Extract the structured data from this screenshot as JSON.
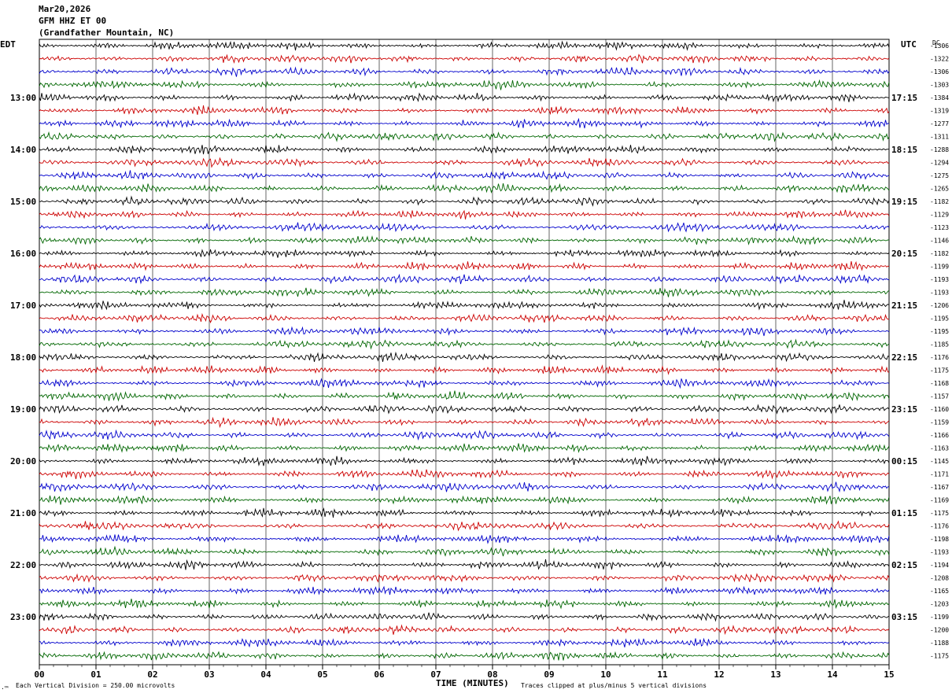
{
  "header": {
    "date": "Mar20,2026",
    "station": "GFM HHZ ET 00",
    "location": "(Grandfather Mountain, NC)"
  },
  "left_zone": "EDT",
  "right_zone": "UTC",
  "dc_label": "DC",
  "footer": {
    "scale_note": "Each Vertical Division =  250.00 microvolts",
    "xlabel": "TIME (MINUTES)",
    "clip_note": "Traces clipped at plus/minus 5 vertical divisions",
    "corner_mark": "·™"
  },
  "chart_data": {
    "type": "line",
    "xlabel": "TIME (MINUTES)",
    "xlim": [
      0,
      15
    ],
    "x_ticks": [
      "00",
      "01",
      "02",
      "03",
      "04",
      "05",
      "06",
      "07",
      "08",
      "09",
      "10",
      "11",
      "12",
      "13",
      "14",
      "15"
    ],
    "grid": true,
    "trace_colors": [
      "#000000",
      "#cc0000",
      "#0000cc",
      "#006600"
    ],
    "left_hour_labels": [
      "13:00",
      "14:00",
      "15:00",
      "16:00",
      "17:00",
      "18:00",
      "19:00",
      "20:00",
      "21:00",
      "22:00",
      "23:00"
    ],
    "right_hour_labels": [
      "17:15",
      "18:15",
      "19:15",
      "20:15",
      "21:15",
      "22:15",
      "23:15",
      "00:15",
      "01:15",
      "02:15",
      "03:15"
    ],
    "trace_dc_offsets": [
      "-1306",
      "-1322",
      "-1306",
      "-1303",
      "-1384",
      "-1319",
      "-1277",
      "-1311",
      "-1288",
      "-1294",
      "-1275",
      "-1265",
      "-1182",
      "-1129",
      "-1123",
      "-1146",
      "-1182",
      "-1199",
      "-1193",
      "-1193",
      "-1206",
      "-1195",
      "-1195",
      "-1185",
      "-1176",
      "-1175",
      "-1168",
      "-1157",
      "-1160",
      "-1159",
      "-1166",
      "-1163",
      "-1145",
      "-1171",
      "-1167",
      "-1169",
      "-1175",
      "-1176",
      "-1198",
      "-1193",
      "-1194",
      "-1208",
      "-1165",
      "-1203",
      "-1199",
      "-1200",
      "-1188",
      "-1175"
    ]
  }
}
